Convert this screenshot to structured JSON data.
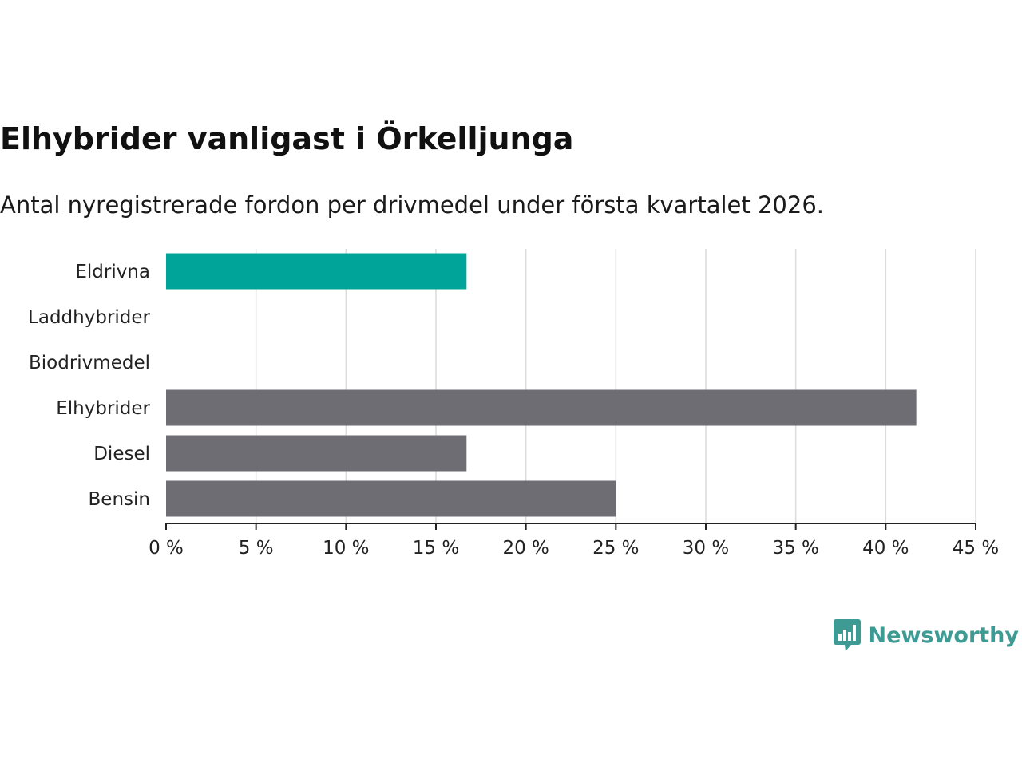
{
  "chart_data": {
    "type": "bar",
    "orientation": "horizontal",
    "title": "Elhybrider vanligast i Örkelljunga",
    "subtitle": "Antal nyregistrerade fordon per drivmedel under första kvartalet 2026.",
    "categories": [
      "Eldrivna",
      "Laddhybrider",
      "Biodrivmedel",
      "Elhybrider",
      "Diesel",
      "Bensin"
    ],
    "values": [
      16.7,
      0,
      0,
      41.7,
      16.7,
      25
    ],
    "colors": [
      "#00a499",
      "#6e6d74",
      "#6e6d74",
      "#6e6d74",
      "#6e6d74",
      "#6e6d74"
    ],
    "xlim": [
      0,
      45
    ],
    "xticks": [
      0,
      5,
      10,
      15,
      20,
      25,
      30,
      35,
      40,
      45
    ],
    "xtick_labels": [
      "0 %",
      "5 %",
      "10 %",
      "15 %",
      "20 %",
      "25 %",
      "30 %",
      "35 %",
      "40 %",
      "45 %"
    ],
    "grid": true,
    "xlabel": "",
    "ylabel": ""
  },
  "brand": {
    "name": "Newsworthy",
    "icon": "bar-chart-speech-icon",
    "color": "#3d9b93"
  }
}
